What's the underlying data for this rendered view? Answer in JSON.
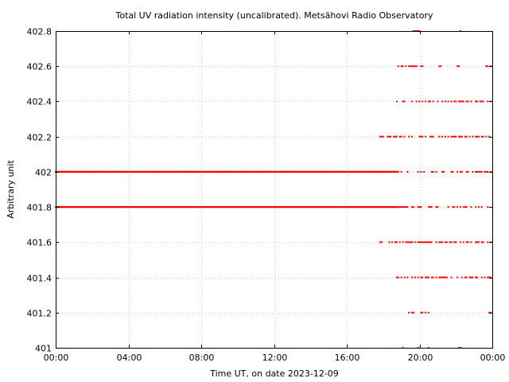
{
  "chart_data": {
    "type": "scatter",
    "title": "Total UV radiation intensity (uncalibrated). Metsähovi Radio Observatory",
    "xlabel": "Time UT, on date 2023-12-09",
    "ylabel": "Arbitrary unit",
    "xlim": [
      "00:00",
      "24:00"
    ],
    "ylim": [
      401,
      402.8
    ],
    "xticks": [
      "00:00",
      "04:00",
      "08:00",
      "12:00",
      "16:00",
      "20:00",
      "00:00"
    ],
    "yticks": [
      "401",
      "401.2",
      "401.4",
      "401.6",
      "401.8",
      "402",
      "402.2",
      "402.4",
      "402.6",
      "402.8"
    ],
    "grid": true,
    "marker_color": "#ff0000",
    "series": [
      {
        "continuous_levels": [
          401.8,
          402.0
        ],
        "continuous_range": [
          "00:00",
          "18:50"
        ],
        "scattered_range": [
          "17:45",
          "24:00"
        ],
        "scattered_points": [
          {
            "level": 402.8,
            "times": [
              "19:40",
              "19:45",
              "19:50",
              "19:55",
              "20:00",
              "22:15"
            ]
          },
          {
            "level": 402.6,
            "times": [
              "18:50",
              "19:00",
              "19:05",
              "19:15",
              "19:25",
              "19:30",
              "19:35",
              "19:40",
              "19:45",
              "19:50",
              "20:05",
              "20:10",
              "21:05",
              "21:10",
              "22:05",
              "22:10",
              "23:40",
              "23:45",
              "23:55"
            ]
          },
          {
            "level": 402.4,
            "times": [
              "18:45",
              "19:05",
              "19:10",
              "19:35",
              "19:50",
              "20:00",
              "20:10",
              "20:20",
              "20:30",
              "20:35",
              "20:45",
              "21:00",
              "21:15",
              "21:25",
              "21:35",
              "21:45",
              "21:55",
              "22:00",
              "22:10",
              "22:15",
              "22:20",
              "22:25",
              "22:35",
              "22:40",
              "22:50",
              "23:05",
              "23:10",
              "23:20",
              "23:25",
              "23:30",
              "23:45",
              "23:55"
            ]
          },
          {
            "level": 402.2,
            "times": [
              "17:50",
              "17:55",
              "18:00",
              "18:15",
              "18:20",
              "18:25",
              "18:35",
              "18:40",
              "18:45",
              "18:55",
              "19:00",
              "19:10",
              "19:25",
              "19:35",
              "20:00",
              "20:05",
              "20:10",
              "20:20",
              "20:35",
              "20:40",
              "20:45",
              "21:05",
              "21:15",
              "21:25",
              "21:35",
              "21:45",
              "21:50",
              "21:55",
              "22:00",
              "22:10",
              "22:15",
              "22:20",
              "22:30",
              "22:35",
              "22:45",
              "22:55",
              "23:05",
              "23:10",
              "23:15",
              "23:25",
              "23:30",
              "23:40",
              "23:50"
            ]
          },
          {
            "level": 402.0,
            "times": [
              "19:00",
              "19:20",
              "19:55",
              "20:05",
              "20:15",
              "20:40",
              "20:45",
              "20:55",
              "21:15",
              "21:20",
              "21:45",
              "21:50",
              "22:05",
              "22:15",
              "22:20",
              "22:35",
              "22:40",
              "22:55",
              "23:05",
              "23:10",
              "23:15",
              "23:20",
              "23:25",
              "23:35",
              "23:40",
              "23:45",
              "23:55"
            ]
          },
          {
            "level": 401.8,
            "times": [
              "18:55",
              "19:00",
              "19:05",
              "19:10",
              "19:15",
              "19:20",
              "19:35",
              "19:40",
              "19:55",
              "20:00",
              "20:05",
              "20:30",
              "20:35",
              "20:40",
              "20:55",
              "21:00",
              "21:35",
              "21:50",
              "21:55",
              "22:05",
              "22:15",
              "22:25",
              "22:30",
              "22:35",
              "22:50",
              "23:05",
              "23:15",
              "23:25",
              "23:45"
            ]
          },
          {
            "level": 401.6,
            "times": [
              "17:50",
              "17:55",
              "18:20",
              "18:30",
              "18:40",
              "18:45",
              "18:55",
              "19:05",
              "19:15",
              "19:20",
              "19:25",
              "19:30",
              "19:35",
              "19:45",
              "19:55",
              "20:00",
              "20:05",
              "20:10",
              "20:15",
              "20:20",
              "20:25",
              "20:30",
              "20:35",
              "20:40",
              "20:55",
              "21:05",
              "21:10",
              "21:15",
              "21:25",
              "21:30",
              "21:40",
              "21:45",
              "21:55",
              "22:00",
              "22:15",
              "22:25",
              "22:35",
              "22:40",
              "22:50",
              "23:05",
              "23:10",
              "23:15",
              "23:25",
              "23:30",
              "23:45",
              "23:55"
            ]
          },
          {
            "level": 401.4,
            "times": [
              "18:45",
              "18:50",
              "19:00",
              "19:10",
              "19:20",
              "19:35",
              "19:45",
              "19:55",
              "20:05",
              "20:10",
              "20:20",
              "20:25",
              "20:30",
              "20:40",
              "20:45",
              "20:55",
              "21:05",
              "21:10",
              "21:15",
              "21:20",
              "21:25",
              "21:30",
              "21:45",
              "22:05",
              "22:20",
              "22:30",
              "22:35",
              "22:45",
              "22:50",
              "22:55",
              "23:05",
              "23:10",
              "23:25",
              "23:35",
              "23:45",
              "23:50",
              "23:55"
            ]
          },
          {
            "level": 401.2,
            "times": [
              "19:25",
              "19:35",
              "19:40",
              "20:05",
              "20:10",
              "20:20",
              "20:30",
              "23:50",
              "23:55"
            ]
          },
          {
            "level": 401.0,
            "times": [
              "19:05",
              "19:55",
              "20:30",
              "22:10",
              "22:15"
            ]
          }
        ]
      }
    ]
  }
}
